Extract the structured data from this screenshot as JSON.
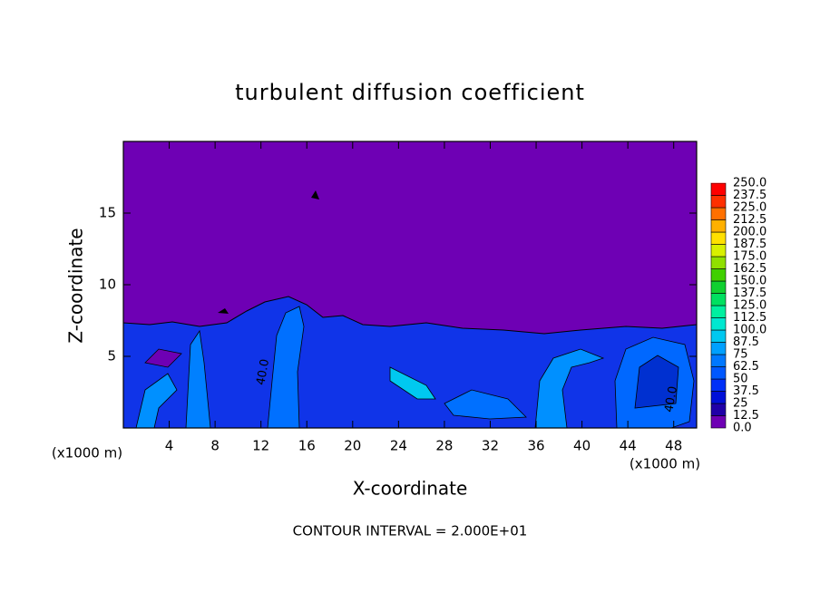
{
  "chart_data": {
    "type": "contour",
    "title": "turbulent diffusion coefficient",
    "x_label": "X-coordinate",
    "y_label": "Z-coordinate",
    "x_unit": "(x1000 m)",
    "y_unit": "(x1000 m)",
    "xlim": [
      0,
      50
    ],
    "xticks": [
      4,
      8,
      12,
      16,
      20,
      24,
      28,
      32,
      36,
      40,
      44,
      48
    ],
    "ylim": [
      0,
      20
    ],
    "yticks": [
      5,
      10,
      15
    ],
    "colorbar": {
      "levels": [
        {
          "value": 0,
          "label": "0.0"
        },
        12.5,
        25,
        37.5,
        50,
        62.5,
        75,
        87.5,
        {
          "value": 100,
          "label": "100.0"
        },
        112.5,
        {
          "value": 125,
          "label": "125.0"
        },
        137.5,
        {
          "value": 150,
          "label": "150.0"
        },
        162.5,
        {
          "value": 175,
          "label": "175.0"
        },
        187.5,
        {
          "value": 200,
          "label": "200.0"
        },
        212.5,
        {
          "value": 225,
          "label": "225.0"
        },
        237.5,
        {
          "value": 250,
          "label": "250.0"
        }
      ],
      "colors": [
        "#6e00b4",
        "#2000a8",
        "#0010d8",
        "#0030f8",
        "#0058ff",
        "#0078ff",
        "#00a0ff",
        "#00c8f0",
        "#00e8d0",
        "#00f0a0",
        "#00e060",
        "#10d030",
        "#40d000",
        "#90e000",
        "#d8f000",
        "#ffe000",
        "#ffb000",
        "#ff7000",
        "#ff3000",
        "#ff0000",
        "#f08080"
      ]
    },
    "contour_labels": [
      {
        "x": 12.2,
        "y": 3.9,
        "value": 40,
        "label": "40.0"
      },
      {
        "x": 47.8,
        "y": 2.0,
        "value": 40,
        "label": "40.0"
      }
    ],
    "footnote": "CONTOUR INTERVAL = 2.000E+01"
  }
}
